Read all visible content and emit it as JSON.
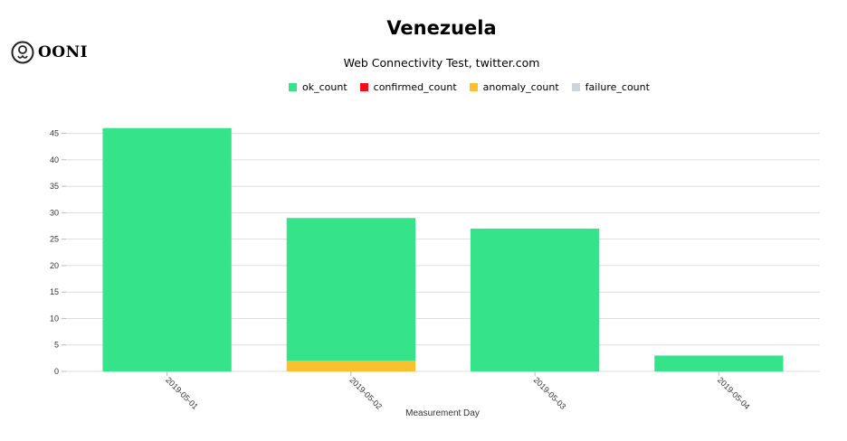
{
  "brand": {
    "logo_text": "OONI"
  },
  "colors": {
    "ok": "#34e38a",
    "confirmed": "#f0101a",
    "anomaly": "#fbc02d",
    "failure": "#ced4da"
  },
  "chart_data": {
    "type": "bar",
    "stacked": true,
    "title": "Venezuela",
    "subtitle": "Web Connectivity Test, twitter.com",
    "xlabel": "Measurement Day",
    "ylabel": "",
    "ylim": [
      0,
      48
    ],
    "yticks": [
      0,
      5,
      10,
      15,
      20,
      25,
      30,
      35,
      40,
      45
    ],
    "categories": [
      "2019-05-01",
      "2019-05-02",
      "2019-05-03",
      "2019-05-04"
    ],
    "series": [
      {
        "name": "ok_count",
        "color": "#34e38a",
        "values": [
          46,
          27,
          27,
          3
        ]
      },
      {
        "name": "confirmed_count",
        "color": "#f0101a",
        "values": [
          0,
          0,
          0,
          0
        ]
      },
      {
        "name": "anomaly_count",
        "color": "#fbc02d",
        "values": [
          0,
          2,
          0,
          0
        ]
      },
      {
        "name": "failure_count",
        "color": "#ced4da",
        "values": [
          0,
          0,
          0,
          0
        ]
      }
    ],
    "grid": true,
    "legend_position": "top"
  }
}
